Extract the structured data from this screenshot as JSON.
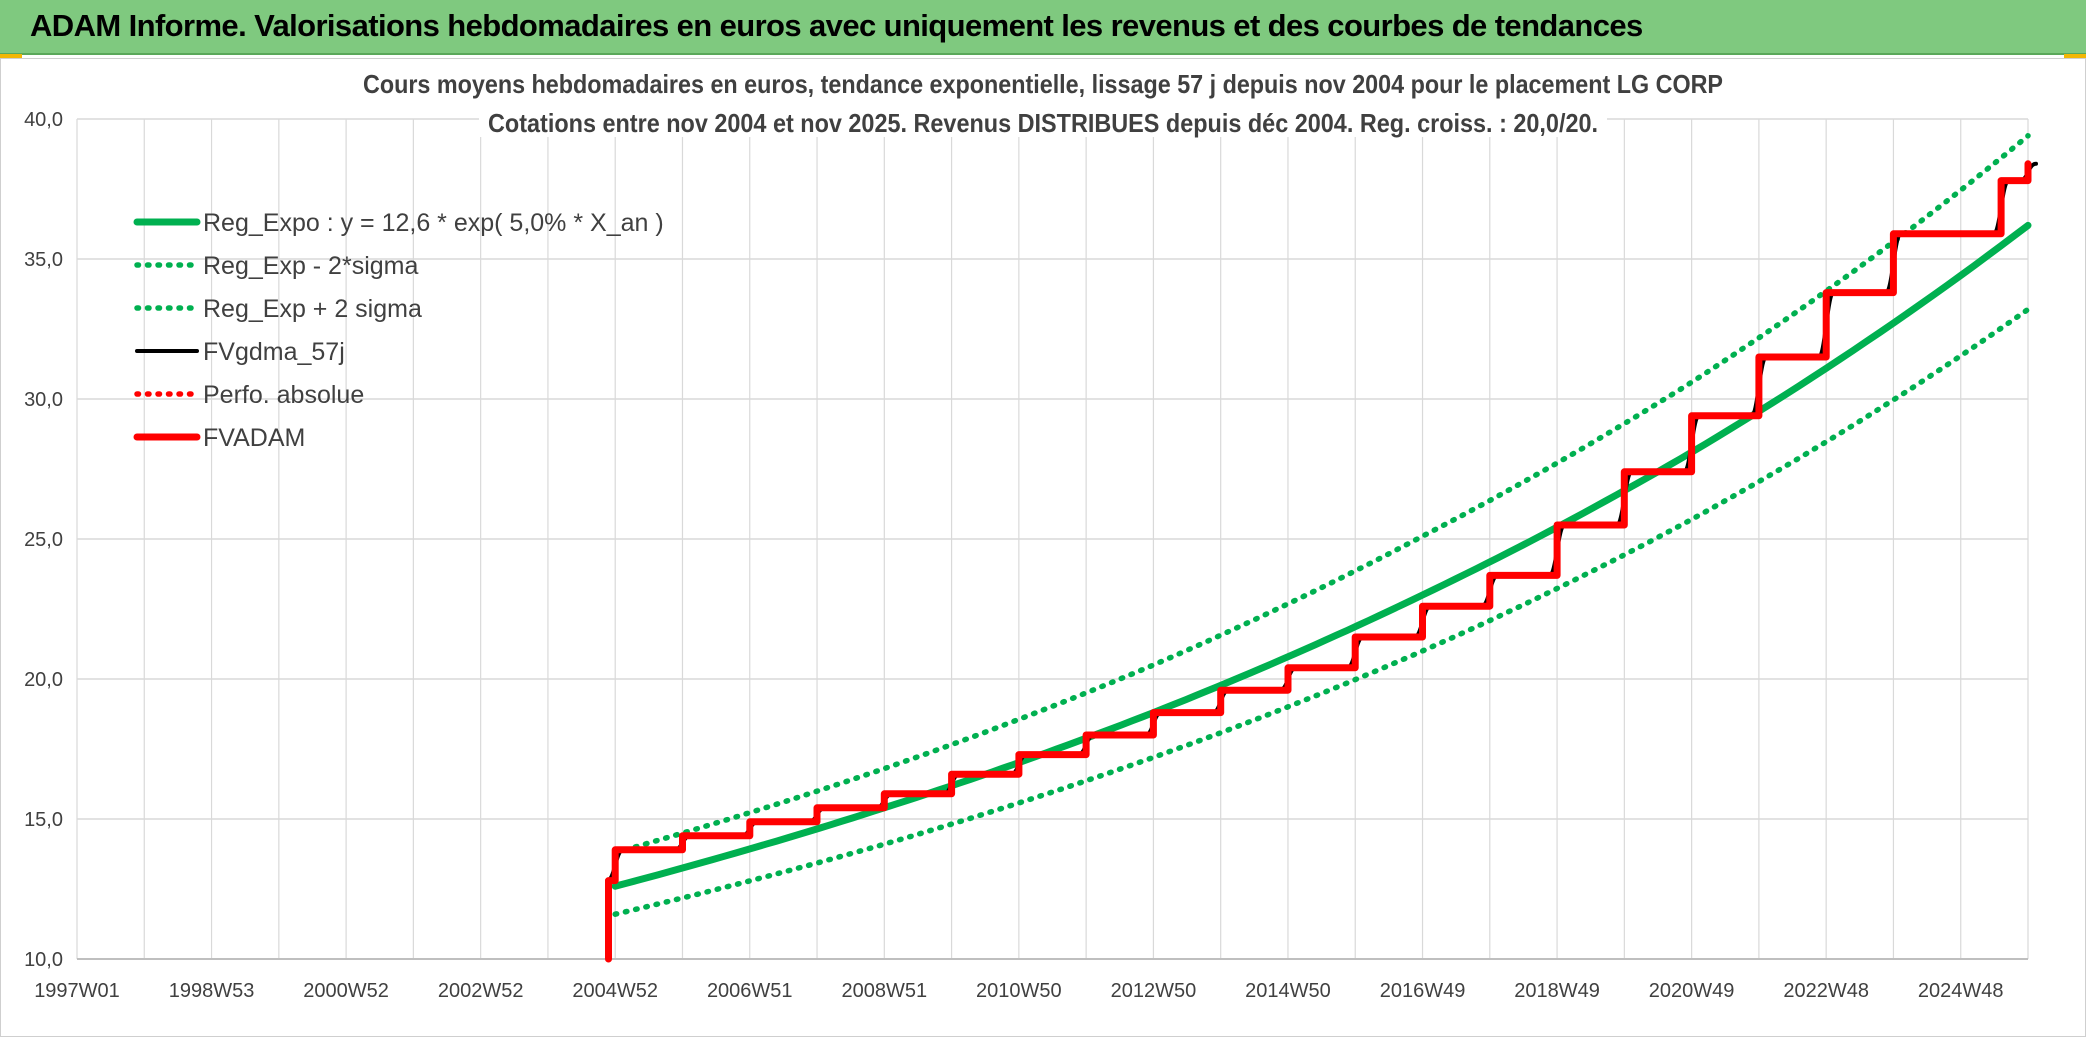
{
  "header": {
    "title": "ADAM Informe. Valorisations hebdomadaires en euros avec uniquement les revenus et des courbes de tendances"
  },
  "colors": {
    "header_bg": "#7fc97f",
    "green": "#00b050",
    "black": "#000000",
    "red": "#ff0000",
    "grid": "#d9d9d9"
  },
  "chart_data": {
    "type": "line",
    "title": "Cours moyens hebdomadaires en euros, tendance exponentielle, lissage 57 j depuis nov 2004 pour le placement LG CORP",
    "subtitle": "Cotations entre nov 2004 et nov 2025. Revenus DISTRIBUES depuis déc 2004. Reg. croiss. : 20,0/20.",
    "xlabel": "",
    "ylabel": "",
    "x_range": [
      1997.0,
      2026.0
    ],
    "ylim": [
      10,
      40
    ],
    "y_ticks": [
      "10,0",
      "15,0",
      "20,0",
      "25,0",
      "30,0",
      "35,0",
      "40,0"
    ],
    "x_ticks": [
      {
        "label": "1997W01",
        "x": 1997.0
      },
      {
        "label": "1998W53",
        "x": 1999.0
      },
      {
        "label": "2000W52",
        "x": 2001.0
      },
      {
        "label": "2002W52",
        "x": 2003.0
      },
      {
        "label": "2004W52",
        "x": 2005.0
      },
      {
        "label": "2006W51",
        "x": 2007.0
      },
      {
        "label": "2008W51",
        "x": 2009.0
      },
      {
        "label": "2010W50",
        "x": 2011.0
      },
      {
        "label": "2012W50",
        "x": 2013.0
      },
      {
        "label": "2014W50",
        "x": 2015.0
      },
      {
        "label": "2016W49",
        "x": 2017.0
      },
      {
        "label": "2018W49",
        "x": 2019.0
      },
      {
        "label": "2020W49",
        "x": 2021.0
      },
      {
        "label": "2022W48",
        "x": 2023.0
      },
      {
        "label": "2024W48",
        "x": 2025.0
      }
    ],
    "grid": true,
    "legend_position": "top-left",
    "series": [
      {
        "name": "Reg_Expo : y = 12,6 * exp( 5,0% *  X_an )",
        "style": "solid-thick",
        "color": "#00b050",
        "x": [
          2005.0,
          2009.0,
          2013.0,
          2017.0,
          2021.0,
          2026.0
        ],
        "y": [
          12.6,
          15.4,
          18.8,
          23.0,
          28.1,
          36.2
        ]
      },
      {
        "name": "Reg_Exp - 2*sigma",
        "style": "dotted",
        "color": "#00b050",
        "x": [
          2005.0,
          2009.0,
          2013.0,
          2017.0,
          2021.0,
          2026.0
        ],
        "y": [
          11.6,
          14.1,
          17.2,
          21.0,
          25.7,
          33.2
        ]
      },
      {
        "name": "Reg_Exp + 2 sigma",
        "style": "dotted",
        "color": "#00b050",
        "x": [
          2005.0,
          2009.0,
          2013.0,
          2017.0,
          2021.0,
          2026.0
        ],
        "y": [
          13.8,
          16.8,
          20.5,
          25.1,
          30.6,
          39.4
        ]
      },
      {
        "name": "FVgdma_57j",
        "style": "solid",
        "color": "#000000",
        "x": [
          2004.9,
          2005.0,
          2006.0,
          2007.0,
          2008.0,
          2009.0,
          2010.0,
          2011.0,
          2012.0,
          2013.0,
          2014.0,
          2015.0,
          2016.0,
          2017.0,
          2018.0,
          2019.0,
          2020.0,
          2021.0,
          2022.0,
          2023.0,
          2024.0,
          2025.0,
          2025.6,
          2026.0
        ],
        "y": [
          12.8,
          13.9,
          14.4,
          14.9,
          15.4,
          15.9,
          16.6,
          17.3,
          18.0,
          18.8,
          19.6,
          20.4,
          21.5,
          22.6,
          23.7,
          25.5,
          27.4,
          29.4,
          31.5,
          33.8,
          35.9,
          35.9,
          37.8,
          38.4
        ]
      },
      {
        "name": "Perfo. absolue",
        "style": "dotted",
        "color": "#ff0000",
        "x": [],
        "y": []
      },
      {
        "name": "FVADAM",
        "style": "solid-thick",
        "color": "#ff0000",
        "x": [
          2004.9,
          2004.9,
          2005.0,
          2006.0,
          2007.0,
          2008.0,
          2009.0,
          2010.0,
          2011.0,
          2012.0,
          2013.0,
          2014.0,
          2015.0,
          2016.0,
          2017.0,
          2018.0,
          2019.0,
          2020.0,
          2021.0,
          2022.0,
          2023.0,
          2024.0,
          2025.0,
          2025.6,
          2026.0
        ],
        "y": [
          10.0,
          12.8,
          13.9,
          14.4,
          14.9,
          15.4,
          15.9,
          16.6,
          17.3,
          18.0,
          18.8,
          19.6,
          20.4,
          21.5,
          22.6,
          23.7,
          25.5,
          27.4,
          29.4,
          31.5,
          33.8,
          35.9,
          35.9,
          37.8,
          38.4
        ]
      }
    ]
  }
}
